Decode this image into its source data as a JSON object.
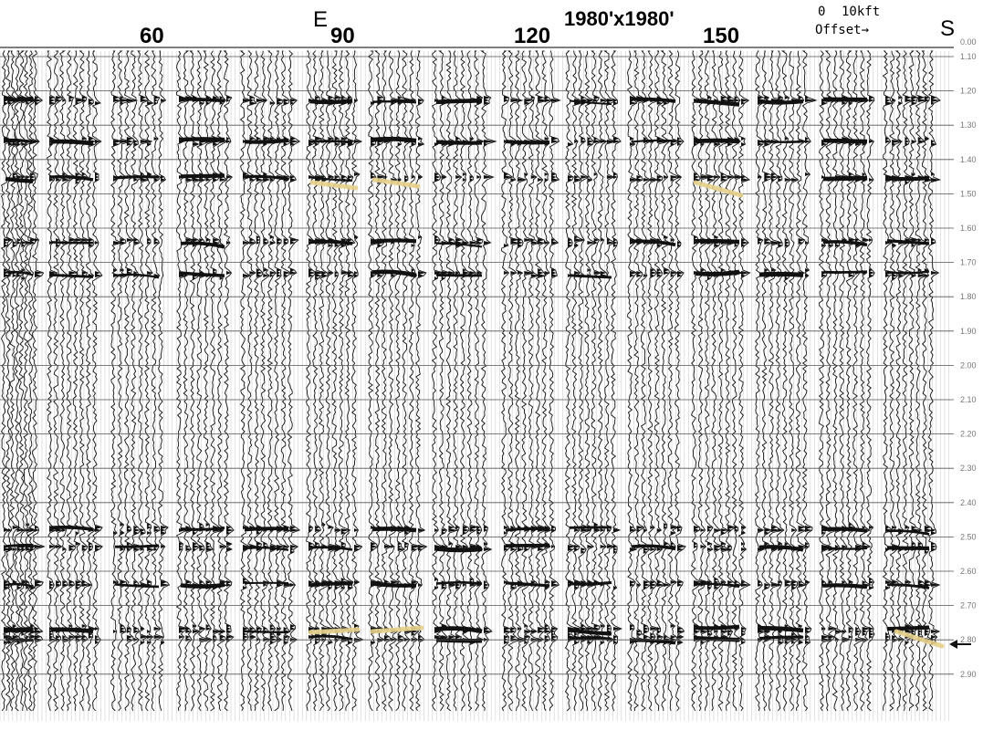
{
  "header": {
    "station_labels": [
      "60",
      "90",
      "120",
      "150"
    ],
    "panel_marker": "E",
    "bin_size": "1980'x1980'",
    "scale_zero": "0",
    "scale_distance": "10kft",
    "offset_label": "Offset→",
    "end_marker": "S"
  },
  "time_axis": {
    "tick_labels": [
      "0.00",
      "1.10",
      "1.20",
      "1.30",
      "1.40",
      "1.50",
      "1.60",
      "1.70",
      "1.80",
      "1.90",
      "2.00",
      "2.10",
      "2.20",
      "2.30",
      "2.40",
      "2.50",
      "2.60",
      "2.70",
      "2.80",
      "2.90"
    ]
  },
  "gather_count": 15,
  "colors": {
    "trace": "#111111",
    "grid": "#555555",
    "highlight": "#e6d08a",
    "axis_text": "#777777"
  },
  "icons": {
    "pointer": "arrow-left-icon"
  }
}
